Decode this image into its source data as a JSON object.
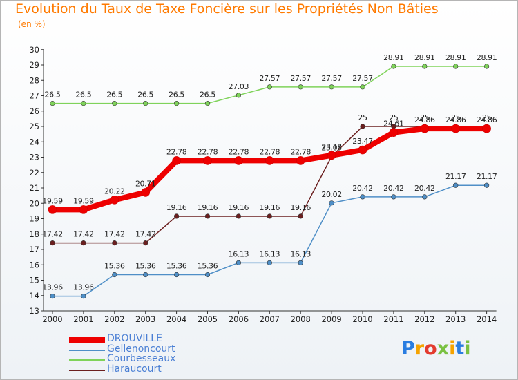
{
  "title": "Evolution du Taux de Taxe Foncière sur les Propriétés Non Bâties",
  "unit": "(en %)",
  "logo": {
    "letters": [
      "P",
      "r",
      "o",
      "x",
      "i",
      "t",
      "i"
    ],
    "colors": [
      "#2a7de1",
      "#f5a300",
      "#e33b2e",
      "#7ac142",
      "#f5a300",
      "#2a7de1",
      "#7ac142"
    ]
  },
  "chart_data": {
    "type": "line",
    "x": [
      "2000",
      "2001",
      "2002",
      "2003",
      "2004",
      "2005",
      "2006",
      "2007",
      "2008",
      "2009",
      "2010",
      "2011",
      "2012",
      "2013",
      "2014"
    ],
    "ylim": [
      13,
      30
    ],
    "yticks": [
      "13",
      "14",
      "15",
      "16",
      "17",
      "18",
      "19",
      "20",
      "21",
      "22",
      "23",
      "24",
      "25",
      "26",
      "27",
      "28",
      "29",
      "30"
    ],
    "grid": false,
    "legend": "bottom-left",
    "series": [
      {
        "name": "DROUVILLE",
        "color": "#ee0000",
        "width": 8,
        "values": [
          19.59,
          19.59,
          20.22,
          20.71,
          22.78,
          22.78,
          22.78,
          22.78,
          22.78,
          23.12,
          23.47,
          24.61,
          24.86,
          24.86,
          24.86
        ],
        "labels": [
          "19.59",
          "19.59",
          "20.22",
          "20.71",
          "22.78",
          "22.78",
          "22.78",
          "22.78",
          "22.78",
          "23.12",
          "23.47",
          "24.61",
          "24.86",
          "24.86",
          "24.86"
        ]
      },
      {
        "name": "Gellenoncourt",
        "color": "#4f8fc7",
        "width": 1.5,
        "values": [
          13.96,
          13.96,
          15.36,
          15.36,
          15.36,
          15.36,
          16.13,
          16.13,
          16.13,
          20.02,
          20.42,
          20.42,
          20.42,
          21.17,
          21.17
        ],
        "labels": [
          "13.96",
          "13.96",
          "15.36",
          "15.36",
          "15.36",
          "15.36",
          "16.13",
          "16.13",
          "16.13",
          "20.02",
          "20.42",
          "20.42",
          "20.42",
          "21.17",
          "21.17"
        ]
      },
      {
        "name": "Courbesseaux",
        "color": "#7fd35a",
        "width": 1.5,
        "values": [
          26.5,
          26.5,
          26.5,
          26.5,
          26.5,
          26.5,
          27.03,
          27.57,
          27.57,
          27.57,
          27.57,
          28.91,
          28.91,
          28.91,
          28.91
        ],
        "labels": [
          "26.5",
          "26.5",
          "26.5",
          "26.5",
          "26.5",
          "26.5",
          "27.03",
          "27.57",
          "27.57",
          "27.57",
          "27.57",
          "28.91",
          "28.91",
          "28.91",
          "28.91"
        ]
      },
      {
        "name": "Haraucourt",
        "color": "#6b1f1f",
        "width": 1.5,
        "values": [
          17.42,
          17.42,
          17.42,
          17.42,
          19.16,
          19.16,
          19.16,
          19.16,
          19.16,
          23.05,
          25,
          25,
          25,
          25,
          25
        ],
        "labels": [
          "17.42",
          "17.42",
          "17.42",
          "17.42",
          "19.16",
          "19.16",
          "19.16",
          "19.16",
          "19.16",
          "23.05",
          "25",
          "25",
          "25",
          "25",
          "25"
        ]
      }
    ]
  }
}
